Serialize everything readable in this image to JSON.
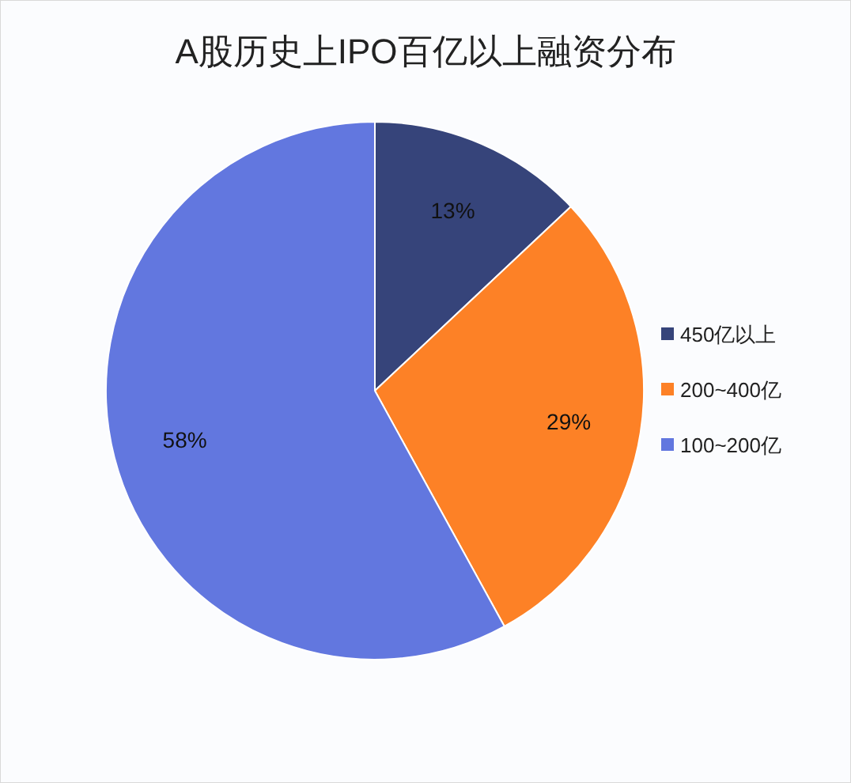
{
  "chart_data": {
    "type": "pie",
    "title": "A股历史上IPO百亿以上融资分布",
    "categories": [
      "450亿以上",
      "200~400亿",
      "100~200亿"
    ],
    "values": [
      13,
      29,
      58
    ],
    "colors": [
      "#36447a",
      "#fd8126",
      "#6277df"
    ],
    "value_labels": [
      "13%",
      "29%",
      "58%"
    ],
    "legend": "right"
  }
}
